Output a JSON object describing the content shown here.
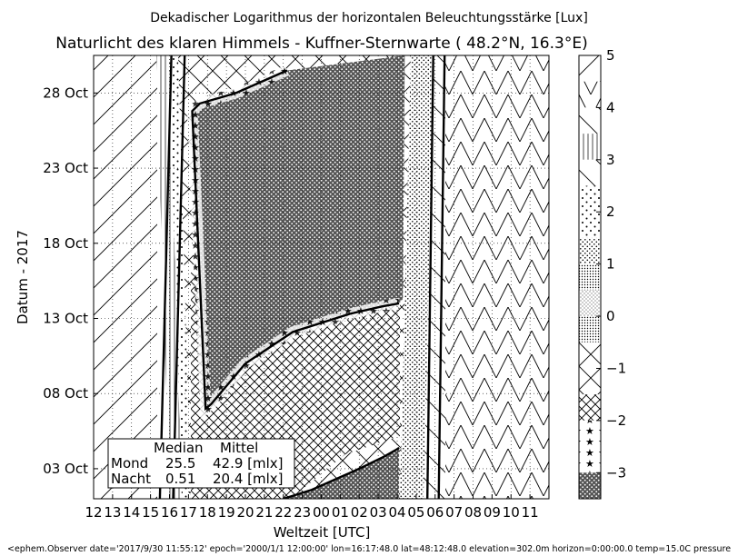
{
  "chart_data": {
    "type": "heatmap",
    "suptitle": "Dekadischer Logarithmus der horizontalen Beleuchtungsstärke [Lux]",
    "title": "Naturlicht des klaren Himmels - Kuffner-Sternwarte ( 48.2°N, 16.3°E)",
    "xlabel": "Weltzeit [UTC]",
    "ylabel": "Datum - 2017",
    "x_ticks": [
      "12",
      "13",
      "14",
      "15",
      "16",
      "17",
      "18",
      "19",
      "20",
      "21",
      "22",
      "23",
      "00",
      "01",
      "02",
      "03",
      "04",
      "05",
      "06",
      "07",
      "08",
      "09",
      "10",
      "11"
    ],
    "y_ticks": [
      "03 Oct",
      "08 Oct",
      "13 Oct",
      "18 Oct",
      "23 Oct",
      "28 Oct"
    ],
    "x_range_hours": [
      12,
      36
    ],
    "y_range_day": [
      30.5,
      1
    ],
    "grid": true,
    "colorbar": {
      "ticks": [
        "5",
        "4",
        "3",
        "2",
        "1",
        "0",
        "−1",
        "−2",
        "−3"
      ],
      "tick_values": [
        5,
        4,
        3,
        2,
        1,
        0,
        -1,
        -2,
        -3
      ],
      "range": [
        -3.5,
        5
      ]
    },
    "sunset_utc": [
      {
        "day": 1,
        "hour": 16.8
      },
      {
        "day": 30,
        "hour": 16.2
      }
    ],
    "sunrise_utc": [
      {
        "day": 1,
        "hour": 29.9
      },
      {
        "day": 30,
        "hour": 29.6
      }
    ],
    "moonlit_boundary_upper": [
      {
        "day": 29.5,
        "hour": 22.2
      },
      {
        "day": 28,
        "hour": 19.5
      },
      {
        "day": 27.3,
        "hour": 17.6
      },
      {
        "day": 26.8,
        "hour": 17.2
      },
      {
        "day": 7,
        "hour": 17.9
      },
      {
        "day": 7.3,
        "hour": 18.2
      },
      {
        "day": 10,
        "hour": 20.0
      },
      {
        "day": 12.1,
        "hour": 22.5
      },
      {
        "day": 13.3,
        "hour": 25.5
      },
      {
        "day": 13.8,
        "hour": 27.2
      },
      {
        "day": 14.0,
        "hour": 28.1
      },
      {
        "day": 14.3,
        "hour": 28.3
      },
      {
        "day": 30.5,
        "hour": 28.4
      }
    ],
    "moonlit_boundary_lower": [
      {
        "day": 1,
        "hour": 22.0
      },
      {
        "day": 1.6,
        "hour": 23.5
      },
      {
        "day": 3.0,
        "hour": 26.0
      },
      {
        "day": 3.8,
        "hour": 27.3
      },
      {
        "day": 4.3,
        "hour": 28.0
      },
      {
        "day": 4.4,
        "hour": 28.1
      },
      {
        "day": 1,
        "hour": 28.1
      }
    ],
    "legend_table": {
      "header": [
        "Median",
        "Mittel"
      ],
      "rows": [
        {
          "label": "Mond",
          "median": "25.5",
          "mean": "42.9 [mlx]"
        },
        {
          "label": "Nacht",
          "median": "0.51",
          "mean": "20.4 [mlx]"
        }
      ]
    },
    "footer": "<ephem.Observer date='2017/9/30 11:55:12' epoch='2000/1/1 12:00:00' lon=16:17:48.0 lat=48:12:48.0 elevation=302.0m horizon=0:00:00.0 temp=15.0C pressure"
  }
}
